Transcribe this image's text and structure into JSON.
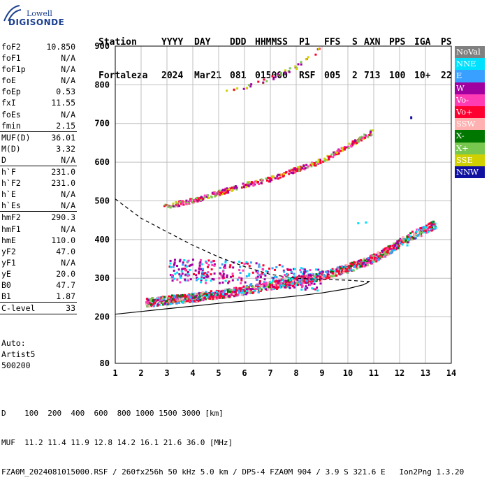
{
  "logo": {
    "line1": "Lowell",
    "line2": "DIGISONDE"
  },
  "header": {
    "row1": [
      "Station",
      "YYYY",
      "DAY",
      "DDD",
      "HHMMSS",
      "P1",
      "FFS",
      "S",
      "AXN",
      "PPS",
      "IGA",
      "PS"
    ],
    "row2": [
      "Fortaleza",
      "2024",
      "Mar21",
      "081",
      "015000",
      "RSF",
      "005",
      "2",
      "713",
      "100",
      "10+",
      "22"
    ]
  },
  "params": [
    {
      "label": "foF2",
      "value": "10.850"
    },
    {
      "label": "foF1",
      "value": "N/A"
    },
    {
      "label": "foF1p",
      "value": "N/A"
    },
    {
      "label": "foE",
      "value": "N/A"
    },
    {
      "label": "foEp",
      "value": "0.53"
    },
    {
      "label": "fxI",
      "value": "11.55"
    },
    {
      "label": "foEs",
      "value": "N/A"
    },
    {
      "label": "fmin",
      "value": "2.15"
    },
    {
      "label": "MUF(D)",
      "value": "36.01",
      "sep": true
    },
    {
      "label": "M(D)",
      "value": "3.32"
    },
    {
      "label": "D",
      "value": "N/A"
    },
    {
      "label": "h`F",
      "value": "231.0",
      "sep": true
    },
    {
      "label": "h`F2",
      "value": "231.0"
    },
    {
      "label": "h`E",
      "value": "N/A"
    },
    {
      "label": "h`Es",
      "value": "N/A"
    },
    {
      "label": "hmF2",
      "value": "290.3",
      "sep": true
    },
    {
      "label": "hmF1",
      "value": "N/A"
    },
    {
      "label": "hmE",
      "value": "110.0"
    },
    {
      "label": "yF2",
      "value": "47.0"
    },
    {
      "label": "yF1",
      "value": "N/A"
    },
    {
      "label": "yE",
      "value": "20.0"
    },
    {
      "label": "B0",
      "value": "47.7"
    },
    {
      "label": "B1",
      "value": "1.87"
    },
    {
      "label": "C-level",
      "value": "33",
      "sep": true
    }
  ],
  "auto": {
    "line1": "Auto:",
    "line2": "Artist5",
    "line3": "500200"
  },
  "legend": [
    {
      "label": "NoVal",
      "color": "#808080"
    },
    {
      "label": "NNE",
      "color": "#00e0ff"
    },
    {
      "label": "E",
      "color": "#3aa0ff"
    },
    {
      "label": "W",
      "color": "#a000a0"
    },
    {
      "label": "Vo-",
      "color": "#ff3cb4"
    },
    {
      "label": "Vo+",
      "color": "#ff0030"
    },
    {
      "label": "SSW",
      "color": "#ffb0b0"
    },
    {
      "label": "X-",
      "color": "#007800"
    },
    {
      "label": "X+",
      "color": "#78c850"
    },
    {
      "label": "SSE",
      "color": "#d0d000"
    },
    {
      "label": "NNW",
      "color": "#1010a0"
    }
  ],
  "footer": {
    "line1": "D    100  200  400  600  800 1000 1500 3000 [km]",
    "line2": "MUF  11.2 11.4 11.9 12.8 14.2 16.1 21.6 36.0 [MHz]",
    "line3": "FZA0M_2024081015000.RSF / 260fx256h 50 kHz 5.0 km / DPS-4 FZA0M 904 / 3.9 S 321.6 E   Ion2Png 1.3.20"
  },
  "chart_data": {
    "type": "scatter",
    "xlim": [
      1,
      14
    ],
    "ylim": [
      80,
      900
    ],
    "x_ticks": [
      1,
      2,
      3,
      4,
      5,
      6,
      7,
      8,
      9,
      10,
      11,
      12,
      13,
      14
    ],
    "y_ticks": [
      80,
      200,
      300,
      400,
      500,
      600,
      700,
      800,
      900
    ],
    "grid": true,
    "traces": {
      "first_hop_o": {
        "color_key": "Vo+",
        "points": [
          [
            2.2,
            236
          ],
          [
            3,
            243
          ],
          [
            4,
            250
          ],
          [
            5,
            258
          ],
          [
            6,
            268
          ],
          [
            7,
            280
          ],
          [
            8,
            292
          ],
          [
            9,
            306
          ],
          [
            10,
            325
          ],
          [
            11,
            350
          ],
          [
            11.5,
            368
          ],
          [
            12,
            390
          ],
          [
            12.5,
            410
          ],
          [
            13,
            425
          ],
          [
            13.4,
            440
          ]
        ]
      },
      "first_hop_w": {
        "color_key": "W",
        "points": [
          [
            3,
            320
          ],
          [
            4,
            318
          ],
          [
            5,
            316
          ],
          [
            6,
            312
          ],
          [
            7,
            307
          ],
          [
            8,
            300
          ],
          [
            9,
            296
          ]
        ]
      },
      "second_hop": {
        "color_key": "Vo+",
        "points": [
          [
            2.9,
            485
          ],
          [
            4,
            500
          ],
          [
            5,
            520
          ],
          [
            6,
            540
          ],
          [
            7,
            556
          ],
          [
            8,
            580
          ],
          [
            9,
            603
          ],
          [
            10,
            640
          ],
          [
            11,
            680
          ]
        ]
      },
      "third_hop": {
        "color_key": "SSE",
        "points": [
          [
            5,
            775
          ],
          [
            6,
            790
          ],
          [
            7,
            815
          ],
          [
            8,
            845
          ],
          [
            9,
            895
          ]
        ]
      },
      "nnw_point": {
        "color_key": "NNW",
        "points": [
          [
            12.45,
            715
          ]
        ]
      },
      "nne_points": {
        "color_key": "NNE",
        "points": [
          [
            12.3,
            385
          ],
          [
            13.1,
            420
          ],
          [
            13.4,
            430
          ],
          [
            10.7,
            444
          ],
          [
            10.4,
            442
          ]
        ]
      }
    },
    "profile_dashed": [
      [
        1,
        505
      ],
      [
        2,
        455
      ],
      [
        3,
        420
      ],
      [
        4,
        385
      ],
      [
        5,
        355
      ],
      [
        6,
        330
      ],
      [
        7,
        310
      ],
      [
        8,
        300
      ],
      [
        9,
        297
      ],
      [
        10,
        295
      ],
      [
        10.6,
        292
      ],
      [
        10.85,
        292
      ]
    ],
    "profile_solid": [
      [
        1,
        207
      ],
      [
        2,
        214
      ],
      [
        3,
        221
      ],
      [
        4,
        228
      ],
      [
        5,
        235
      ],
      [
        6,
        241
      ],
      [
        7,
        247
      ],
      [
        8,
        254
      ],
      [
        9,
        262
      ],
      [
        10,
        273
      ],
      [
        10.6,
        283
      ],
      [
        10.8,
        290
      ]
    ]
  }
}
